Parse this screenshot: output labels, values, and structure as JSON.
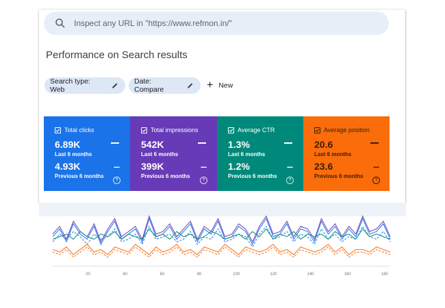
{
  "search": {
    "placeholder": "Inspect any URL in \"https://www.refmon.in/\""
  },
  "page_title": "Performance on Search results",
  "filters": [
    {
      "label": "Search type: Web"
    },
    {
      "label": "Date: Compare"
    }
  ],
  "new_button": {
    "label": "New"
  },
  "metrics": [
    {
      "title": "Total clicks",
      "value": "6.89K",
      "period": "Last 6 months",
      "compare_value": "4.93K",
      "compare_period": "Previous 6 months",
      "color": "#1a73e8"
    },
    {
      "title": "Total impressions",
      "value": "542K",
      "period": "Last 6 months",
      "compare_value": "399K",
      "compare_period": "Previous 6 months",
      "color": "#673ab7"
    },
    {
      "title": "Average CTR",
      "value": "1.3%",
      "period": "Last 6 months",
      "compare_value": "1.2%",
      "compare_period": "Previous 6 months",
      "color": "#00897b"
    },
    {
      "title": "Average position",
      "value": "20.6",
      "period": "Last 6 months",
      "compare_value": "23.6",
      "compare_period": "Previous 6 months",
      "color": "#fb6c0b"
    }
  ],
  "chart_data": {
    "type": "line",
    "x_ticks": [
      20,
      40,
      60,
      80,
      100,
      120,
      140,
      160,
      180
    ],
    "xlim": [
      1,
      183
    ],
    "ylim": [
      0,
      1
    ],
    "grid": false,
    "series": [
      {
        "color": "#1a73e8",
        "dashed": false,
        "values": [
          0.55,
          0.7,
          0.45,
          0.8,
          0.6,
          0.5,
          0.75,
          0.4,
          0.65,
          0.85,
          0.5,
          0.6,
          0.7,
          0.45,
          0.9,
          0.55,
          0.6,
          0.75,
          0.5,
          0.65,
          0.8,
          0.45,
          0.7,
          0.6,
          0.85,
          0.5,
          0.55,
          0.75,
          0.65,
          0.4,
          0.7,
          0.9,
          0.55,
          0.6,
          0.8,
          0.5,
          0.7,
          0.65,
          0.45,
          0.85,
          0.6,
          0.75,
          0.5,
          0.7,
          0.55,
          0.9,
          0.6,
          0.65,
          0.8,
          0.5
        ]
      },
      {
        "color": "#1a73e8",
        "dashed": true,
        "values": [
          0.45,
          0.6,
          0.5,
          0.65,
          0.55,
          0.4,
          0.6,
          0.5,
          0.55,
          0.7,
          0.45,
          0.5,
          0.6,
          0.4,
          0.75,
          0.5,
          0.55,
          0.6,
          0.45,
          0.5,
          0.65,
          0.4,
          0.55,
          0.5,
          0.7,
          0.45,
          0.5,
          0.6,
          0.55,
          0.35,
          0.6,
          0.75,
          0.5,
          0.55,
          0.65,
          0.45,
          0.6,
          0.55,
          0.4,
          0.7,
          0.5,
          0.6,
          0.45,
          0.55,
          0.5,
          0.75,
          0.55,
          0.5,
          0.65,
          0.45
        ]
      },
      {
        "color": "#673ab7",
        "dashed": false,
        "values": [
          0.6,
          0.75,
          0.5,
          0.85,
          0.65,
          0.55,
          0.8,
          0.45,
          0.7,
          0.9,
          0.55,
          0.65,
          0.75,
          0.5,
          0.95,
          0.6,
          0.65,
          0.8,
          0.55,
          0.7,
          0.85,
          0.5,
          0.75,
          0.65,
          0.9,
          0.55,
          0.6,
          0.8,
          0.7,
          0.45,
          0.75,
          0.95,
          0.6,
          0.65,
          0.85,
          0.55,
          0.75,
          0.7,
          0.5,
          0.9,
          0.65,
          0.8,
          0.55,
          0.75,
          0.6,
          0.95,
          0.65,
          0.7,
          0.85,
          0.55
        ]
      },
      {
        "color": "#00897b",
        "dashed": false,
        "values": [
          0.5,
          0.55,
          0.6,
          0.5,
          0.65,
          0.55,
          0.5,
          0.6,
          0.55,
          0.65,
          0.5,
          0.6,
          0.55,
          0.5,
          0.7,
          0.55,
          0.6,
          0.5,
          0.65,
          0.55,
          0.6,
          0.5,
          0.55,
          0.65,
          0.6,
          0.5,
          0.55,
          0.6,
          0.5,
          0.65,
          0.55,
          0.7,
          0.5,
          0.6,
          0.55,
          0.65,
          0.5,
          0.6,
          0.55,
          0.6,
          0.5,
          0.65,
          0.55,
          0.6,
          0.5,
          0.7,
          0.55,
          0.6,
          0.55,
          0.5
        ]
      },
      {
        "color": "#fb6c0b",
        "dashed": false,
        "values": [
          0.3,
          0.25,
          0.35,
          0.2,
          0.3,
          0.4,
          0.25,
          0.3,
          0.2,
          0.35,
          0.3,
          0.25,
          0.4,
          0.3,
          0.2,
          0.35,
          0.25,
          0.3,
          0.4,
          0.25,
          0.3,
          0.2,
          0.35,
          0.3,
          0.25,
          0.4,
          0.3,
          0.2,
          0.35,
          0.3,
          0.25,
          0.3,
          0.4,
          0.25,
          0.3,
          0.2,
          0.35,
          0.3,
          0.25,
          0.3,
          0.4,
          0.25,
          0.35,
          0.2,
          0.3,
          0.3,
          0.25,
          0.35,
          0.3,
          0.25
        ]
      },
      {
        "color": "#fb6c0b",
        "dashed": true,
        "values": [
          0.25,
          0.2,
          0.3,
          0.15,
          0.25,
          0.35,
          0.2,
          0.25,
          0.15,
          0.3,
          0.25,
          0.2,
          0.35,
          0.25,
          0.15,
          0.3,
          0.2,
          0.25,
          0.35,
          0.2,
          0.25,
          0.15,
          0.3,
          0.25,
          0.2,
          0.35,
          0.25,
          0.15,
          0.3,
          0.25,
          0.2,
          0.25,
          0.35,
          0.2,
          0.25,
          0.15,
          0.3,
          0.25,
          0.2,
          0.25,
          0.35,
          0.2,
          0.3,
          0.15,
          0.25,
          0.25,
          0.2,
          0.3,
          0.25,
          0.2
        ]
      }
    ]
  }
}
